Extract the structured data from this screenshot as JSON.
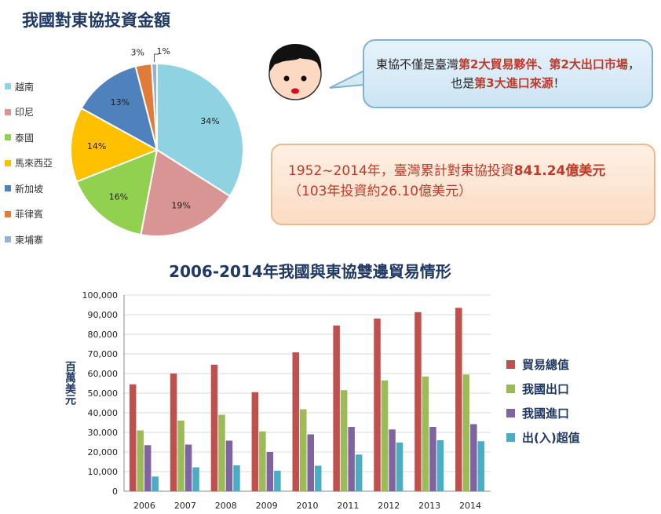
{
  "page": {
    "title": "我國對東協投資金額"
  },
  "bubble": {
    "parts": [
      {
        "text": "東協不僅是臺灣",
        "hl": false
      },
      {
        "text": "第2大貿易夥伴、第2大出口市場",
        "hl": true
      },
      {
        "text": "，也是",
        "hl": false
      },
      {
        "text": "第3大進口來源",
        "hl": true
      },
      {
        "text": "！",
        "hl": false
      }
    ]
  },
  "note": {
    "line_prefix": "1952~2014年，臺灣累計對東協投資",
    "amount": "841.24億美元",
    "line_suffix": "（103年投資約26.10億美元）"
  },
  "colors": {
    "title": "#1f3864",
    "highlight": "#c0392b"
  },
  "chart_data": [
    {
      "type": "pie",
      "title": "",
      "slices": [
        {
          "label": "越南",
          "value": 34,
          "value_label": "34%",
          "color": "#8fd3e2"
        },
        {
          "label": "印尼",
          "value": 19,
          "value_label": "19%",
          "color": "#d99594"
        },
        {
          "label": "泰國",
          "value": 16,
          "value_label": "16%",
          "color": "#92d050"
        },
        {
          "label": "馬來西亞",
          "value": 14,
          "value_label": "14%",
          "color": "#ffc000"
        },
        {
          "label": "新加坡",
          "value": 13,
          "value_label": "13%",
          "color": "#4f81bd"
        },
        {
          "label": "菲律賓",
          "value": 3,
          "value_label": "3%",
          "color": "#e07b39"
        },
        {
          "label": "柬埔寨",
          "value": 1,
          "value_label": "1%",
          "color": "#95b3d7"
        }
      ],
      "legend_position": "left"
    },
    {
      "type": "bar",
      "title": "2006-2014年我國與東協雙邊貿易情形",
      "xlabel": "",
      "ylabel": "百萬美元",
      "categories": [
        "2006",
        "2007",
        "2008",
        "2009",
        "2010",
        "2011",
        "2012",
        "2013",
        "2014"
      ],
      "ylim": [
        0,
        100000
      ],
      "yticks": [
        "0",
        "10,000",
        "20,000",
        "30,000",
        "40,000",
        "50,000",
        "60,000",
        "70,000",
        "80,000",
        "90,000",
        "100,000"
      ],
      "grid": true,
      "legend_position": "right",
      "series": [
        {
          "name": "貿易總值",
          "color": "#c0504d",
          "values": [
            54500,
            60000,
            64500,
            50500,
            70800,
            84500,
            88000,
            91300,
            93500
          ]
        },
        {
          "name": "我國出口",
          "color": "#9bbb59",
          "values": [
            31000,
            36000,
            39000,
            30500,
            41800,
            51500,
            56500,
            58500,
            59500
          ]
        },
        {
          "name": "我國進口",
          "color": "#8064a2",
          "values": [
            23500,
            23800,
            25800,
            20000,
            29000,
            32800,
            31500,
            32800,
            34200
          ]
        },
        {
          "name": "出(入)超值",
          "color": "#4bacc6",
          "values": [
            7500,
            12200,
            13200,
            10500,
            13000,
            18700,
            24800,
            26000,
            25500
          ]
        }
      ]
    }
  ]
}
